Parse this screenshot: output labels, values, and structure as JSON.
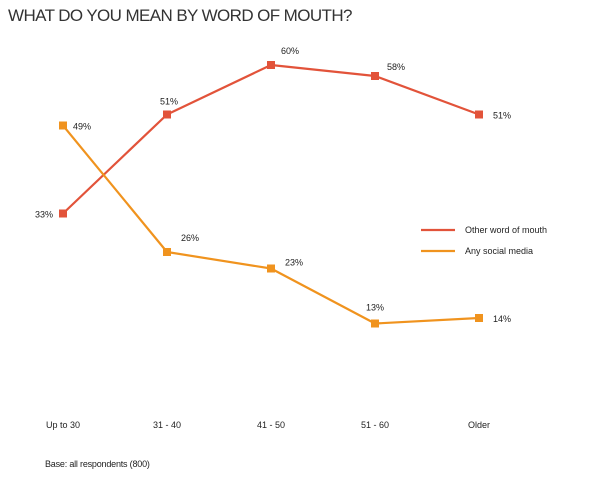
{
  "chart_data": {
    "type": "line",
    "title": "WHAT DO YOU MEAN BY WORD OF MOUTH?",
    "categories": [
      "Up to 30",
      "31 - 40",
      "41 - 50",
      "51 - 60",
      "Older"
    ],
    "series": [
      {
        "name": "Other word of mouth",
        "values": [
          33,
          51,
          60,
          58,
          51
        ],
        "color": "#e2533a"
      },
      {
        "name": "Any social media",
        "values": [
          49,
          26,
          23,
          13,
          14
        ],
        "color": "#f0931e"
      }
    ],
    "value_suffix": "%",
    "ylim": [
      0,
      70
    ],
    "grid": false,
    "legend_position": "right",
    "xlabel": "",
    "ylabel": ""
  },
  "footnote": "Base: all respondents (800)"
}
